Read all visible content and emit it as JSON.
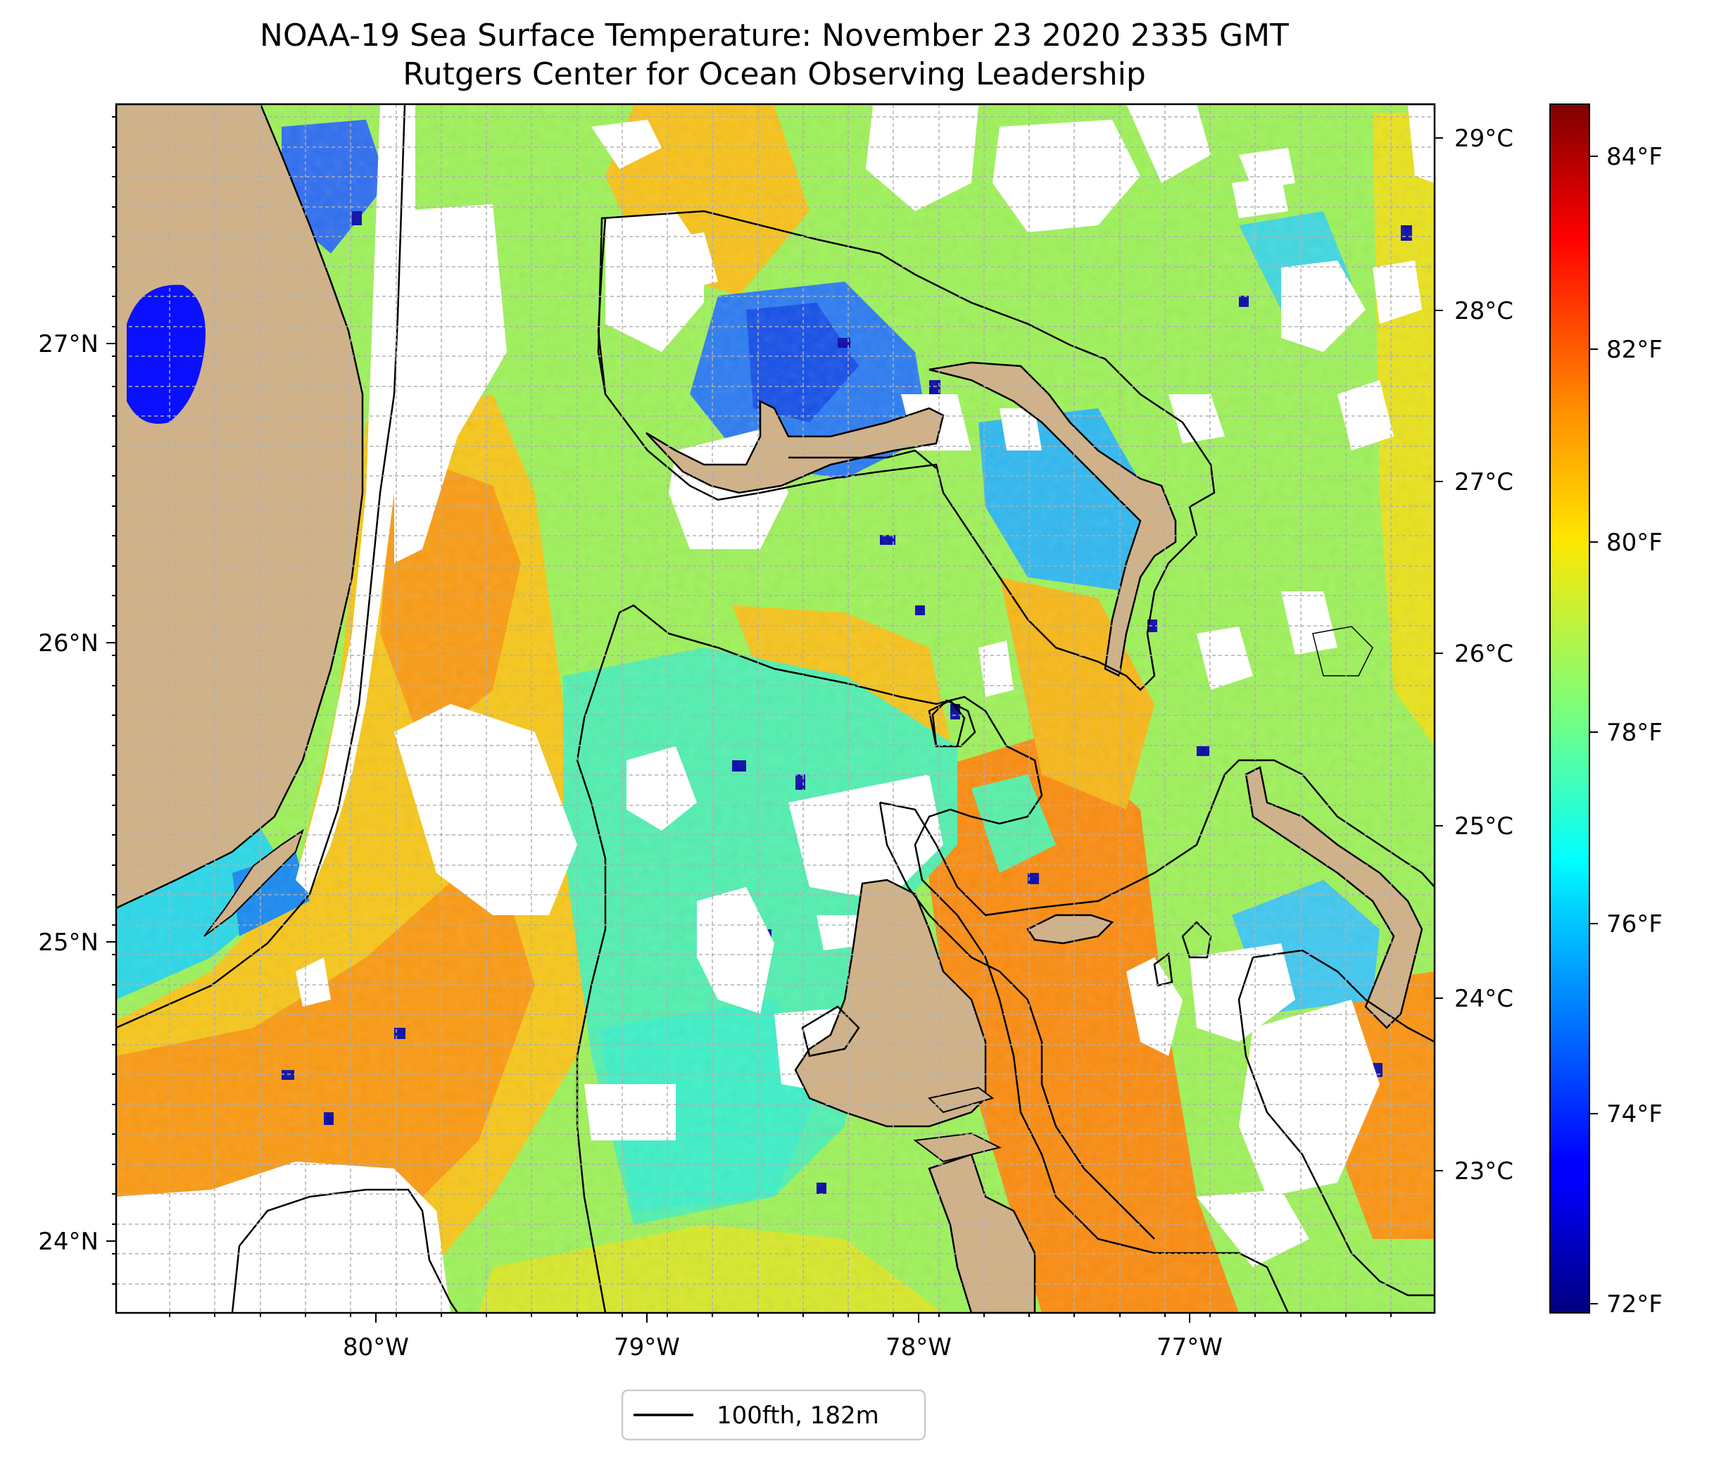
{
  "figure": {
    "title_line1": "NOAA-19 Sea Surface Temperature: November 23 2020 2335 GMT",
    "title_line2": "Rutgers Center for Ocean Observing Leadership"
  },
  "map": {
    "lon_ticks": [
      "80°W",
      "79°W",
      "78°W",
      "77°W"
    ],
    "lat_ticks": [
      "24°N",
      "25°N",
      "26°N",
      "27°N"
    ],
    "land_color": "#d0b28a",
    "grid": "on, dashed gray",
    "legend": {
      "label": "100fth, 182m",
      "placement": "bottom-center, below map"
    }
  },
  "colorbar": {
    "celsius_ticks": [
      "29°C",
      "28°C",
      "27°C",
      "26°C",
      "25°C",
      "24°C",
      "23°C"
    ],
    "fahrenheit_ticks": [
      "84°F",
      "82°F",
      "80°F",
      "78°F",
      "76°F",
      "74°F",
      "72°F"
    ],
    "colormap": "jet",
    "range_f": [
      71.9,
      84.6
    ]
  },
  "colors": {
    "cloud_mask": "#ffffff",
    "isobath": "#000000",
    "grid": "#b0b0b0"
  }
}
